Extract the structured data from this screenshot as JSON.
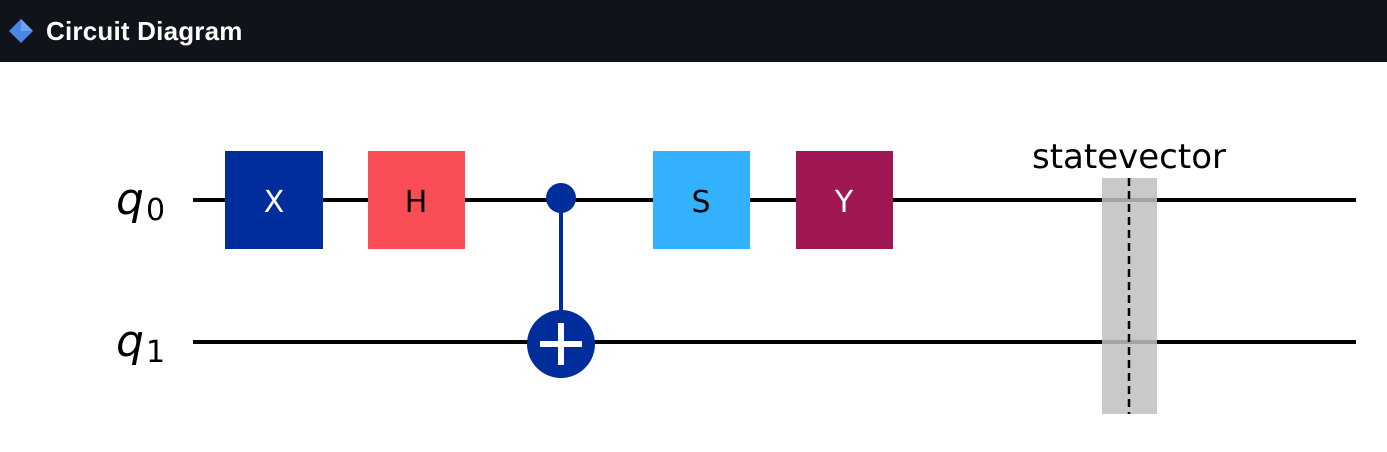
{
  "header": {
    "title": "Circuit Diagram",
    "icon": "blue-diamond-icon",
    "icon_color": "#4a86e8",
    "background": "#10131a"
  },
  "circuit": {
    "qubits": [
      {
        "letter": "q",
        "index": "0"
      },
      {
        "letter": "q",
        "index": "1"
      }
    ],
    "gates": [
      {
        "label": "X",
        "qubit": 0,
        "color": "#002d9c"
      },
      {
        "label": "H",
        "qubit": 0,
        "color": "#fa4d56"
      },
      {
        "label": "S",
        "qubit": 0,
        "color": "#33b1ff"
      },
      {
        "label": "Y",
        "qubit": 0,
        "color": "#9f1853"
      }
    ],
    "controlled_gate": {
      "name": "CNOT",
      "control": 0,
      "target": 1,
      "color": "#002d9c"
    },
    "barrier": {
      "label": "statevector",
      "color": "#bfbfbf"
    }
  }
}
